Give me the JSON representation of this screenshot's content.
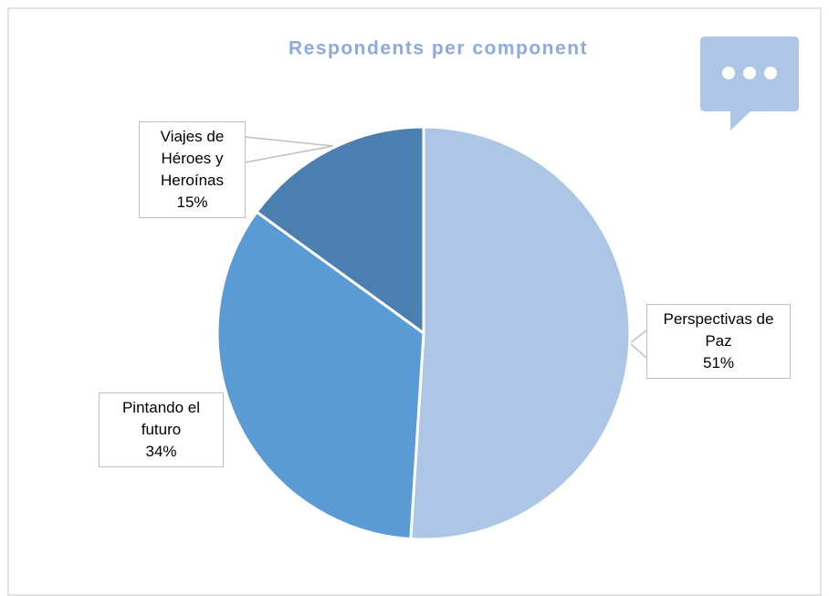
{
  "chart_data": {
    "type": "pie",
    "title": "Respondents per component",
    "categories": [
      "Perspectivas de Paz",
      "Pintando el futuro",
      "Viajes de Héroes y Heroínas"
    ],
    "values": [
      51,
      34,
      15
    ],
    "value_labels": [
      "51%",
      "34%",
      "15%"
    ],
    "colors": [
      "#adc6e5",
      "#5b9bd5",
      "#4a7fb0"
    ]
  }
}
